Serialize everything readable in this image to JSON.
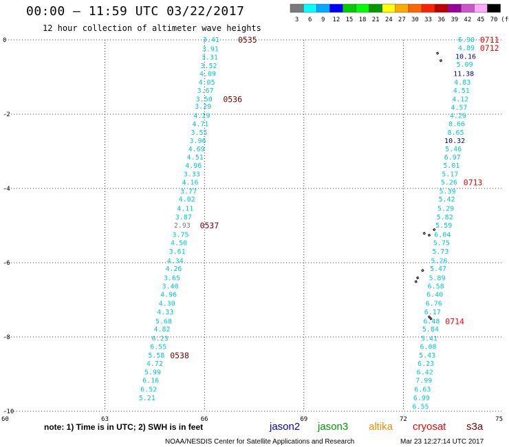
{
  "title": "00:00 — 11:59 UTC 03/22/2017",
  "subtitle": "12 hour collection of altimeter wave heights",
  "colorbar": {
    "colors": [
      "#7a7a7a",
      "#00ffff",
      "#00aaff",
      "#0000ff",
      "#00cc00",
      "#00ff00",
      "#009900",
      "#ffff00",
      "#ffaa00",
      "#ff6600",
      "#ff2200",
      "#bb0000",
      "#990099",
      "#cc55cc",
      "#ffaaff",
      "#000000"
    ],
    "labels": [
      "3",
      "6",
      "9",
      "12",
      "15",
      "18",
      "21",
      "24",
      "27",
      "30",
      "33",
      "36",
      "39",
      "42",
      "45",
      "70",
      "(ft)"
    ]
  },
  "note": "note: 1) Time is in UTC; 2) SWH is in feet",
  "satellites": [
    {
      "name": "jason2",
      "color": "#0000cc"
    },
    {
      "name": "jason3",
      "color": "#009900"
    },
    {
      "name": "altika",
      "color": "#ff8800"
    },
    {
      "name": "cryosat",
      "color": "#ff0000"
    },
    {
      "name": "s3a",
      "color": "#770000"
    }
  ],
  "footer": {
    "credit": "NOAA/NESDIS Center for Satellite Applications and Research",
    "timestamp": "Mar 23 12:27:14 UTC 2017"
  },
  "chart_data": {
    "type": "scatter",
    "x_ticks": [
      "60",
      "63",
      "66",
      "69",
      "72",
      "75"
    ],
    "y_ticks": [
      "0",
      "-2",
      "-4",
      "-6",
      "-8",
      "-10"
    ],
    "xlim": [
      60,
      75
    ],
    "ylim": [
      -10,
      0
    ],
    "grid": true,
    "tracks": [
      {
        "points": [
          {
            "x": 66.2,
            "y": 0.0,
            "v": "3.41"
          },
          {
            "x": 66.18,
            "y": -0.25,
            "v": "3.91"
          },
          {
            "x": 66.16,
            "y": -0.47,
            "v": "3.31"
          },
          {
            "x": 66.13,
            "y": -0.7,
            "v": "3.52"
          },
          {
            "x": 66.1,
            "y": -0.92,
            "v": "4.09"
          },
          {
            "x": 66.07,
            "y": -1.15,
            "v": "4.05"
          },
          {
            "x": 66.03,
            "y": -1.37,
            "v": "3.67"
          },
          {
            "x": 65.99,
            "y": -1.6,
            "v": "3.50"
          },
          {
            "x": 65.96,
            "y": -1.8,
            "v": "3.29"
          },
          {
            "x": 65.92,
            "y": -2.05,
            "v": "4.29"
          },
          {
            "x": 65.88,
            "y": -2.27,
            "v": "4.71"
          },
          {
            "x": 65.84,
            "y": -2.5,
            "v": "3.55"
          },
          {
            "x": 65.8,
            "y": -2.72,
            "v": "3.96"
          },
          {
            "x": 65.76,
            "y": -2.94,
            "v": "4.69"
          },
          {
            "x": 65.72,
            "y": -3.17,
            "v": "4.51"
          },
          {
            "x": 65.67,
            "y": -3.39,
            "v": "4.96"
          },
          {
            "x": 65.62,
            "y": -3.62,
            "v": "3.33"
          },
          {
            "x": 65.57,
            "y": -3.84,
            "v": "4.16"
          },
          {
            "x": 65.52,
            "y": -4.08,
            "v": "3.77"
          },
          {
            "x": 65.47,
            "y": -4.3,
            "v": "4.02"
          },
          {
            "x": 65.42,
            "y": -4.55,
            "v": "4.11"
          },
          {
            "x": 65.37,
            "y": -4.78,
            "v": "3.87"
          },
          {
            "x": 65.33,
            "y": -5.0,
            "v": "2.93"
          },
          {
            "x": 65.28,
            "y": -5.25,
            "v": "3.75"
          },
          {
            "x": 65.23,
            "y": -5.47,
            "v": "4.50"
          },
          {
            "x": 65.18,
            "y": -5.7,
            "v": "3.61"
          },
          {
            "x": 65.12,
            "y": -5.95,
            "v": "4.34"
          },
          {
            "x": 65.07,
            "y": -6.17,
            "v": "4.26"
          },
          {
            "x": 65.02,
            "y": -6.42,
            "v": "3.65"
          },
          {
            "x": 64.97,
            "y": -6.64,
            "v": "3.40"
          },
          {
            "x": 64.92,
            "y": -6.86,
            "v": "4.96"
          },
          {
            "x": 64.87,
            "y": -7.1,
            "v": "4.30"
          },
          {
            "x": 64.82,
            "y": -7.33,
            "v": "4.33"
          },
          {
            "x": 64.77,
            "y": -7.58,
            "v": "5.68"
          },
          {
            "x": 64.72,
            "y": -7.8,
            "v": "4.82"
          },
          {
            "x": 64.66,
            "y": -8.05,
            "v": "6.23"
          },
          {
            "x": 64.61,
            "y": -8.27,
            "v": "6.55"
          },
          {
            "x": 64.55,
            "y": -8.5,
            "v": "5.58"
          },
          {
            "x": 64.5,
            "y": -8.72,
            "v": "4.72"
          },
          {
            "x": 64.44,
            "y": -8.95,
            "v": "5.99"
          },
          {
            "x": 64.38,
            "y": -9.18,
            "v": "6.16"
          },
          {
            "x": 64.32,
            "y": -9.42,
            "v": "6.52"
          },
          {
            "x": 64.27,
            "y": -9.65,
            "v": "5.21"
          }
        ],
        "times": [
          {
            "x": 67.3,
            "y": 0.0,
            "t": "0535"
          },
          {
            "x": 66.85,
            "y": -1.6,
            "t": "0536"
          },
          {
            "x": 66.15,
            "y": -5.0,
            "t": "0537"
          },
          {
            "x": 65.25,
            "y": -8.5,
            "t": "0538"
          }
        ]
      },
      {
        "points": [
          {
            "x": 73.9,
            "y": 0.0,
            "v": "6.90"
          },
          {
            "x": 73.9,
            "y": -0.22,
            "v": "4.89"
          },
          {
            "x": 73.88,
            "y": -0.45,
            "v": "10.16"
          },
          {
            "x": 73.85,
            "y": -0.67,
            "v": "5.09"
          },
          {
            "x": 73.82,
            "y": -0.92,
            "v": "11.38"
          },
          {
            "x": 73.78,
            "y": -1.15,
            "v": "4.83"
          },
          {
            "x": 73.75,
            "y": -1.37,
            "v": "4.51"
          },
          {
            "x": 73.72,
            "y": -1.6,
            "v": "4.12"
          },
          {
            "x": 73.68,
            "y": -1.82,
            "v": "4.57"
          },
          {
            "x": 73.65,
            "y": -2.05,
            "v": "4.29"
          },
          {
            "x": 73.61,
            "y": -2.27,
            "v": "8.66"
          },
          {
            "x": 73.58,
            "y": -2.5,
            "v": "8.65"
          },
          {
            "x": 73.55,
            "y": -2.72,
            "v": "10.32"
          },
          {
            "x": 73.51,
            "y": -2.94,
            "v": "5.46"
          },
          {
            "x": 73.48,
            "y": -3.17,
            "v": "6.97"
          },
          {
            "x": 73.45,
            "y": -3.39,
            "v": "5.01"
          },
          {
            "x": 73.41,
            "y": -3.62,
            "v": "5.17"
          },
          {
            "x": 73.38,
            "y": -3.84,
            "v": "5.26"
          },
          {
            "x": 73.33,
            "y": -4.08,
            "v": "5.39"
          },
          {
            "x": 73.31,
            "y": -4.3,
            "v": "5.42"
          },
          {
            "x": 73.28,
            "y": -4.55,
            "v": "5.29"
          },
          {
            "x": 73.25,
            "y": -4.78,
            "v": "5.82"
          },
          {
            "x": 73.22,
            "y": -5.0,
            "v": "5.59"
          },
          {
            "x": 73.18,
            "y": -5.25,
            "v": "6.04"
          },
          {
            "x": 73.15,
            "y": -5.47,
            "v": "5.75"
          },
          {
            "x": 73.12,
            "y": -5.7,
            "v": "5.73"
          },
          {
            "x": 73.08,
            "y": -5.95,
            "v": "5.26"
          },
          {
            "x": 73.05,
            "y": -6.17,
            "v": "5.47"
          },
          {
            "x": 73.02,
            "y": -6.42,
            "v": "5.89"
          },
          {
            "x": 72.98,
            "y": -6.64,
            "v": "6.58"
          },
          {
            "x": 72.95,
            "y": -6.86,
            "v": "6.40"
          },
          {
            "x": 72.92,
            "y": -7.1,
            "v": "6.76"
          },
          {
            "x": 72.88,
            "y": -7.33,
            "v": "6.17"
          },
          {
            "x": 72.85,
            "y": -7.58,
            "v": "6.48"
          },
          {
            "x": 72.82,
            "y": -7.8,
            "v": "5.84"
          },
          {
            "x": 72.78,
            "y": -8.05,
            "v": "5.41"
          },
          {
            "x": 72.75,
            "y": -8.27,
            "v": "6.08"
          },
          {
            "x": 72.72,
            "y": -8.5,
            "v": "5.43"
          },
          {
            "x": 72.68,
            "y": -8.72,
            "v": "6.23"
          },
          {
            "x": 72.65,
            "y": -8.95,
            "v": "6.42"
          },
          {
            "x": 72.62,
            "y": -9.18,
            "v": "7.99"
          },
          {
            "x": 72.58,
            "y": -9.42,
            "v": "6.63"
          },
          {
            "x": 72.55,
            "y": -9.65,
            "v": "6.99"
          },
          {
            "x": 72.52,
            "y": -9.88,
            "v": "6.55"
          }
        ],
        "times": [
          {
            "x": 74.6,
            "y": 0.0,
            "t": "0711"
          },
          {
            "x": 74.6,
            "y": -0.22,
            "t": "0712"
          },
          {
            "x": 74.1,
            "y": -3.84,
            "t": "0713"
          },
          {
            "x": 73.55,
            "y": -7.58,
            "t": "0714"
          }
        ]
      }
    ]
  }
}
